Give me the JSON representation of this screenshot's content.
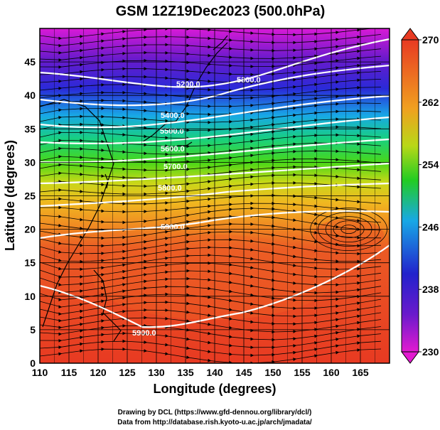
{
  "title": "GSM 12Z19Dec2023 (500.0hPa)",
  "xlabel": "Longitude (degrees)",
  "ylabel": "Latitude  (degrees)",
  "x_ticks": [
    "110",
    "115",
    "120",
    "125",
    "130",
    "135",
    "140",
    "145",
    "150",
    "155",
    "160",
    "165"
  ],
  "y_ticks": [
    "0",
    "5",
    "10",
    "15",
    "20",
    "25",
    "30",
    "35",
    "40",
    "45"
  ],
  "colorbar_ticks": [
    "230",
    "238",
    "246",
    "254",
    "262",
    "270"
  ],
  "contour_labels": [
    "5200.0",
    "5300.0",
    "5400.0",
    "5500.0",
    "5600.0",
    "5700.0",
    "5800.0",
    "5900.0",
    "5900.0"
  ],
  "credits": {
    "line1": "Drawing by DCL (https://www.gfd-dennou.org/library/dcl/)",
    "line2": "Data from http://database.rish.kyoto-u.ac.jp/arch/jmadata/"
  },
  "colors": {
    "cold": "#e21ad0",
    "mid_cold": "#2222cc",
    "mid": "#22cc22",
    "warm": "#f0a020",
    "hot": "#e83a22"
  }
}
